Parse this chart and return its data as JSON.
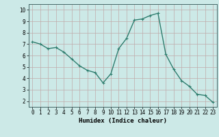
{
  "x": [
    0,
    1,
    2,
    3,
    4,
    5,
    6,
    7,
    8,
    9,
    10,
    11,
    12,
    13,
    14,
    15,
    16,
    17,
    18,
    19,
    20,
    21,
    22,
    23
  ],
  "y": [
    7.2,
    7.0,
    6.6,
    6.7,
    6.3,
    5.7,
    5.1,
    4.7,
    4.5,
    3.6,
    4.4,
    6.6,
    7.5,
    9.1,
    9.2,
    9.5,
    9.7,
    6.1,
    4.8,
    3.8,
    3.3,
    2.6,
    2.5,
    1.9
  ],
  "line_color": "#2e7d6e",
  "marker": "+",
  "marker_size": 3,
  "linewidth": 1.0,
  "xlabel": "Humidex (Indice chaleur)",
  "xlim": [
    -0.5,
    23.5
  ],
  "ylim": [
    1.5,
    10.5
  ],
  "yticks": [
    2,
    3,
    4,
    5,
    6,
    7,
    8,
    9,
    10
  ],
  "xticks": [
    0,
    1,
    2,
    3,
    4,
    5,
    6,
    7,
    8,
    9,
    10,
    11,
    12,
    13,
    14,
    15,
    16,
    17,
    18,
    19,
    20,
    21,
    22,
    23
  ],
  "bg_color": "#cce9e7",
  "grid_color": "#c0aaaa",
  "tick_label_fontsize": 5.5,
  "xlabel_fontsize": 6.5
}
